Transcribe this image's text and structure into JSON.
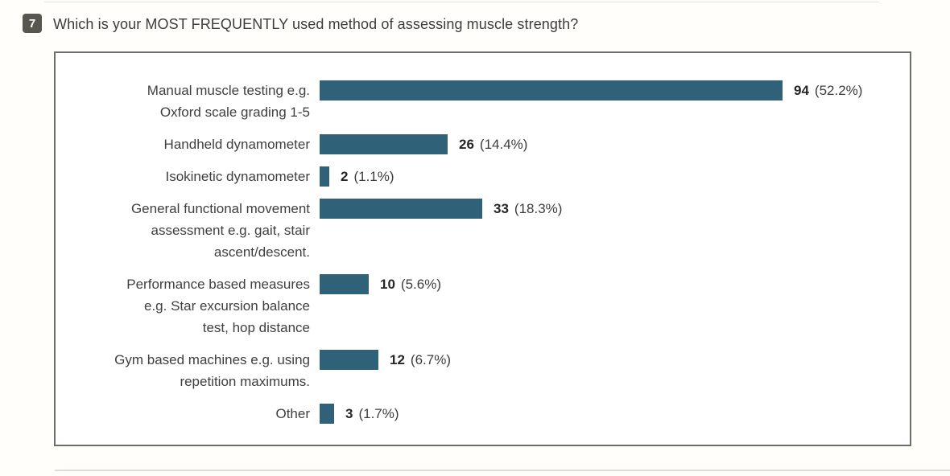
{
  "page": {
    "question_number": "7",
    "question_text": "Which is your MOST FREQUENTLY used method of assessing muscle strength?"
  },
  "colors": {
    "bar": "#2f6178",
    "badge_background": "#57564f",
    "box_border": "#6d6d6d"
  },
  "chart_data": {
    "type": "bar",
    "orientation": "horizontal",
    "title": "Which is your MOST FREQUENTLY used method of assessing muscle strength?",
    "question_number": "7",
    "categories": [
      "Manual muscle testing e.g. Oxford scale grading 1-5",
      "Handheld dynamometer",
      "Isokinetic dynamometer",
      "General functional movement assessment e.g. gait, stair ascent/descent.",
      "Performance based measures e.g. Star excursion balance test, hop distance",
      "Gym based machines e.g. using repetition maximums.",
      "Other"
    ],
    "label_lines": [
      [
        "Manual muscle testing e.g.",
        "Oxford scale grading 1-5"
      ],
      [
        "Handheld dynamometer"
      ],
      [
        "Isokinetic dynamometer"
      ],
      [
        "General functional movement",
        "assessment e.g. gait, stair",
        "ascent/descent."
      ],
      [
        "Performance based measures",
        "e.g. Star excursion balance",
        "test, hop distance"
      ],
      [
        "Gym based machines e.g. using",
        "repetition maximums."
      ],
      [
        "Other"
      ]
    ],
    "values": [
      94,
      26,
      2,
      33,
      10,
      12,
      3
    ],
    "percents": [
      "52.2%",
      "14.4%",
      "1.1%",
      "18.3%",
      "5.6%",
      "6.7%",
      "1.7%"
    ],
    "value_axis_max": 94,
    "axes_hidden": true,
    "legend": false,
    "bar_color": "#2f6178"
  }
}
